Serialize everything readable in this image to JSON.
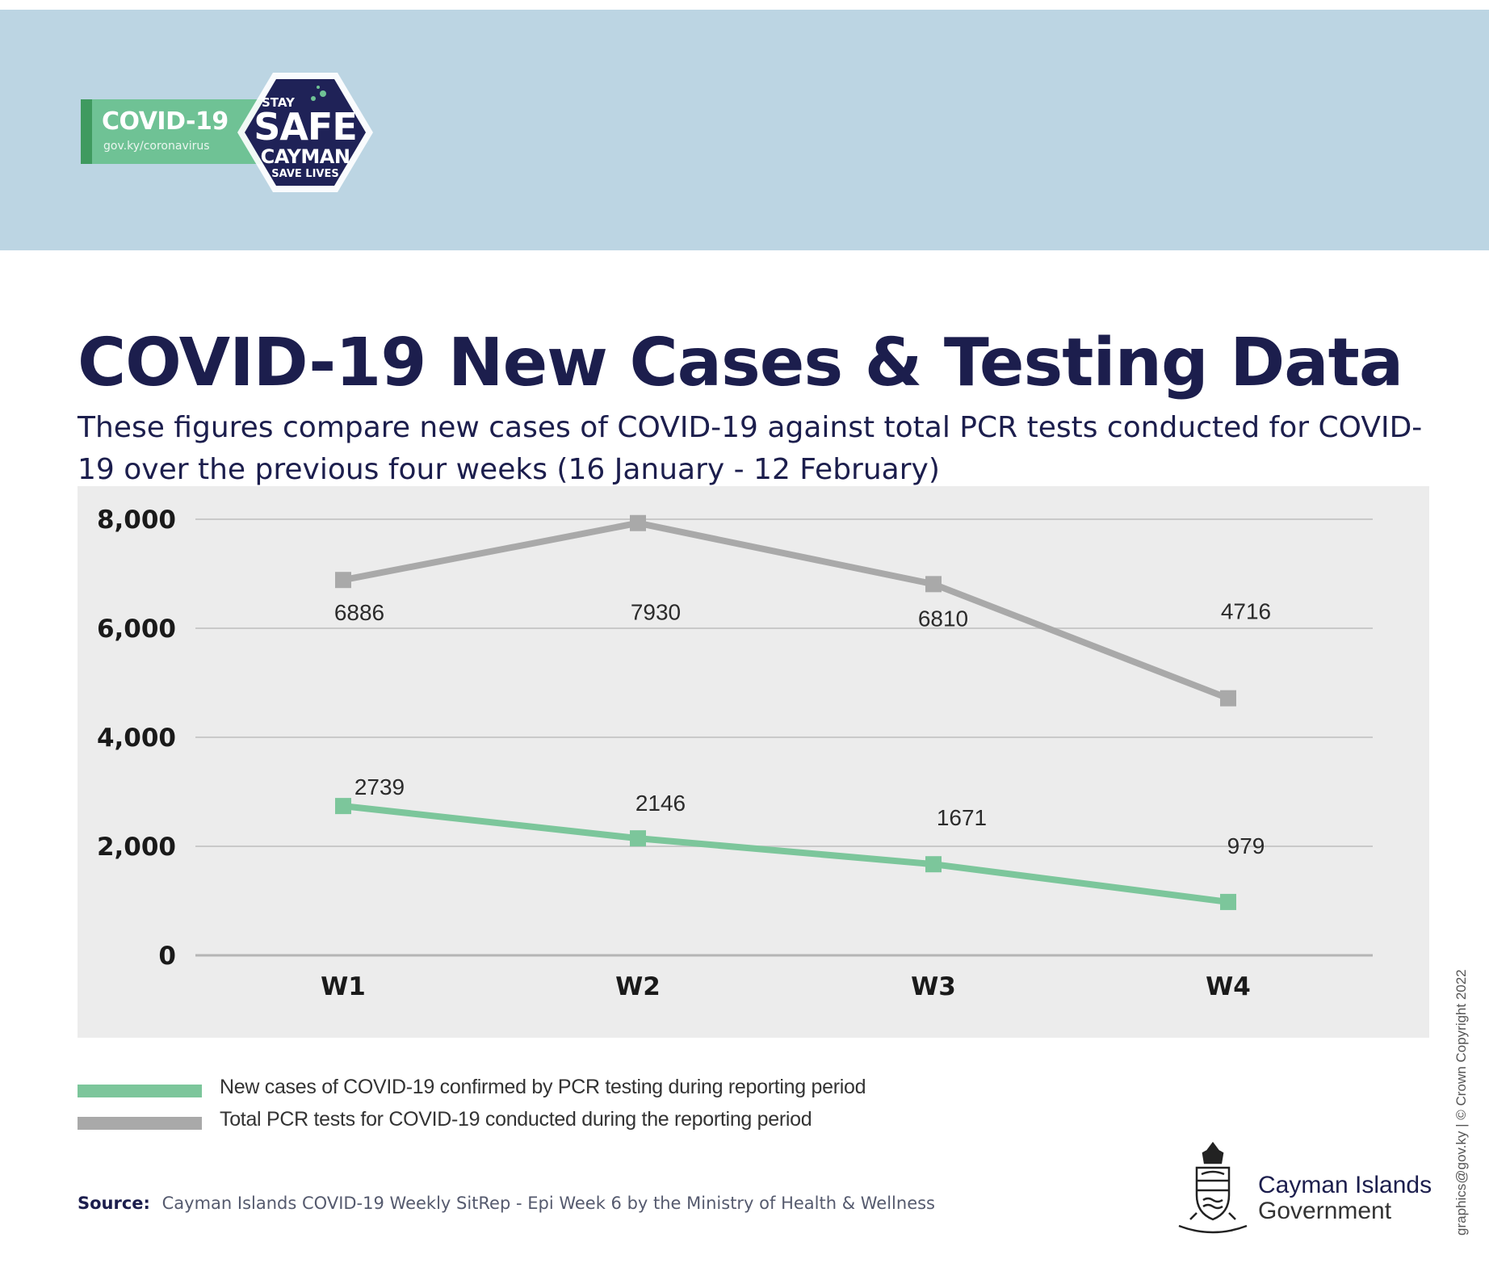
{
  "header": {
    "logo_title": "COVID-19",
    "logo_url": "gov.ky/coronavirus",
    "badge": {
      "stay": "STAY",
      "safe": "SAFE",
      "cayman": "CAYMAN",
      "lives": "SAVE LIVES"
    }
  },
  "title": "COVID-19 New Cases & Testing Data",
  "subtitle": "These figures compare new cases of COVID-19 against total PCR tests conducted for COVID-19 over the previous four weeks (16 January - 12 February)",
  "chart_data": {
    "type": "line",
    "title": "COVID-19 New Cases & Testing Data",
    "xlabel": "",
    "ylabel": "",
    "categories": [
      "W1",
      "W2",
      "W3",
      "W4"
    ],
    "ylim": [
      0,
      8000
    ],
    "yticks": [
      0,
      2000,
      4000,
      6000,
      8000
    ],
    "ytick_labels": [
      "0",
      "2,000",
      "4,000",
      "6,000",
      "8,000"
    ],
    "grid": true,
    "series": [
      {
        "name": "New cases  of COVID-19 confirmed by PCR testing  during reporting period",
        "values": [
          2739,
          2146,
          1671,
          979
        ],
        "color": "#7cc69b"
      },
      {
        "name": "Total PCR tests for COVID-19 conducted during the reporting period",
        "values": [
          6886,
          7930,
          6810,
          4716
        ],
        "color": "#a9a9a9"
      }
    ]
  },
  "legend": {
    "items": [
      {
        "label": "New cases  of COVID-19 confirmed by PCR testing  during reporting period",
        "color": "#7cc69b"
      },
      {
        "label": "Total PCR tests for COVID-19 conducted during the reporting period",
        "color": "#a9a9a9"
      }
    ]
  },
  "source": {
    "label": "Source:",
    "text": "Cayman Islands COVID-19 Weekly SitRep - Epi Week 6 by the Ministry of Health & Wellness"
  },
  "footer": {
    "gov_line1": "Cayman Islands",
    "gov_line2": "Government",
    "credit": "graphics@gov.ky | © Crown Copyright 2022"
  }
}
